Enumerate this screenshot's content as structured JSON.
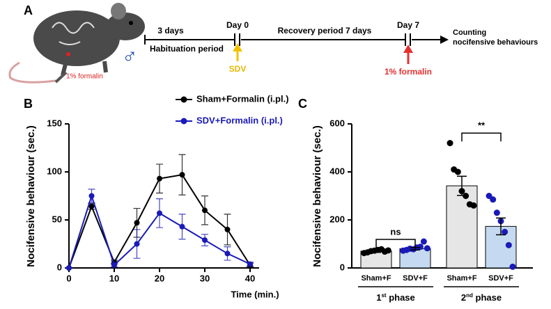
{
  "diagram": {
    "panel_label": "A",
    "mouse_label": "1% formalin",
    "sex_symbol": "♂",
    "timeline": {
      "pre_label": "3 days",
      "habituation": "Habituation period",
      "day0": "Day 0",
      "recovery": "Recovery period 7 days",
      "day7": "Day 7",
      "end_label": [
        "Counting",
        "nocifensive behaviours"
      ],
      "day0_event": "SDV",
      "day7_event": "1% formalin"
    }
  },
  "chart_data": [
    {
      "type": "line",
      "panel_label": "B",
      "xlabel": "Time (min.)",
      "ylabel": "Nocifensive behaviour (sec.)",
      "x": [
        0,
        5,
        10,
        15,
        20,
        25,
        30,
        35,
        40
      ],
      "series": [
        {
          "name": "Sham+Formalin (i.pl.)",
          "color": "#000000",
          "values": [
            0,
            64,
            6,
            47,
            93,
            97,
            60,
            40,
            3
          ],
          "errors": [
            0,
            3,
            2,
            15,
            15,
            21,
            15,
            16,
            2
          ]
        },
        {
          "name": "SDV+Formalin (i.pl.)",
          "color": "#1a1ab8",
          "values": [
            0,
            75,
            3,
            25,
            57,
            43,
            29,
            15,
            4
          ],
          "errors": [
            0,
            7,
            2,
            15,
            15,
            13,
            6,
            7,
            2
          ]
        }
      ],
      "xlim": [
        0,
        42
      ],
      "xticks": [
        0,
        10,
        20,
        30,
        40
      ],
      "ylim": [
        0,
        150
      ],
      "yticks": [
        0,
        50,
        100,
        150
      ]
    },
    {
      "type": "bar",
      "panel_label": "C",
      "ylabel": "Nocifensive behaviour (sec.)",
      "categories": [
        "Sham+F",
        "SDV+F",
        "Sham+F",
        "SDV+F"
      ],
      "groups": [
        [
          "1",
          "st",
          " phase"
        ],
        [
          "2",
          "nd",
          " phase"
        ]
      ],
      "values": [
        70,
        80,
        342,
        173
      ],
      "errors": [
        5,
        5,
        40,
        35
      ],
      "colors": [
        "#e6e6e6",
        "#c5daf0",
        "#e6e6e6",
        "#c5daf0"
      ],
      "point_colors": [
        "#000000",
        "#1a1ab8",
        "#000000",
        "#1a1ab8"
      ],
      "points": [
        [
          62,
          65,
          70,
          72,
          75,
          78,
          68,
          73
        ],
        [
          72,
          75,
          80,
          78,
          85,
          88,
          110,
          82
        ],
        [
          520,
          410,
          400,
          320,
          300,
          265,
          260
        ],
        [
          300,
          285,
          230,
          195,
          150,
          95,
          5
        ]
      ],
      "annotations": [
        "ns",
        "**"
      ],
      "ylim": [
        0,
        600
      ],
      "yticks": [
        0,
        200,
        400,
        600
      ]
    }
  ]
}
